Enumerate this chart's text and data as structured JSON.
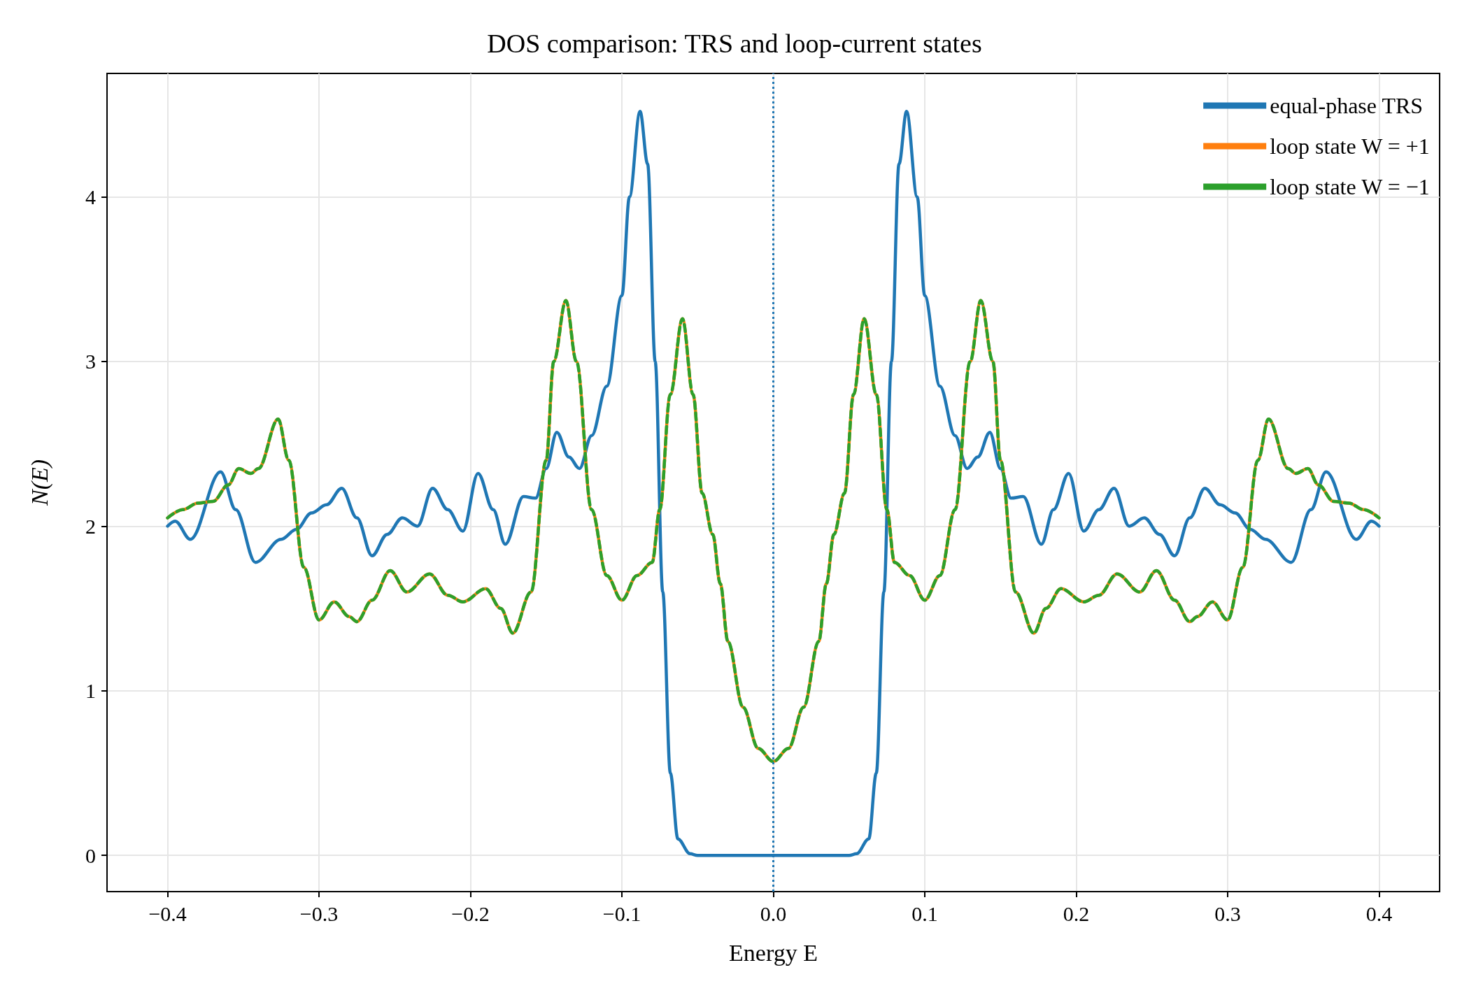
{
  "chart_data": {
    "type": "line",
    "title": "DOS comparison: TRS and loop-current states",
    "xlabel": "Energy E",
    "ylabel": "N(E)",
    "xlim": [
      -0.44,
      0.44
    ],
    "ylim": [
      -0.22,
      4.75
    ],
    "xticks": [
      {
        "value": -0.4,
        "label": "−0.4"
      },
      {
        "value": -0.3,
        "label": "−0.3"
      },
      {
        "value": -0.2,
        "label": "−0.2"
      },
      {
        "value": -0.1,
        "label": "−0.1"
      },
      {
        "value": 0,
        "label": "0.0"
      },
      {
        "value": 0.1,
        "label": "0.1"
      },
      {
        "value": 0.2,
        "label": "0.2"
      },
      {
        "value": 0.3,
        "label": "0.3"
      },
      {
        "value": 0.4,
        "label": "0.4"
      }
    ],
    "yticks": [
      0,
      1,
      2,
      3,
      4
    ],
    "grid": true,
    "legend": "top right",
    "marker": "none",
    "ref_lines": [
      {
        "axis": "x",
        "value": 0,
        "color": "#1f77b4",
        "line_style": "dotted"
      }
    ],
    "series": [
      {
        "name": "equal-phase TRS",
        "color": "#1f77b4",
        "line_style": "solid",
        "x": [
          -0.4,
          -0.395,
          -0.385,
          -0.365,
          -0.355,
          -0.342,
          -0.325,
          -0.315,
          -0.305,
          -0.295,
          -0.285,
          -0.275,
          -0.265,
          -0.255,
          -0.245,
          -0.235,
          -0.225,
          -0.215,
          -0.205,
          -0.195,
          -0.185,
          -0.177,
          -0.165,
          -0.157,
          -0.15,
          -0.143,
          -0.135,
          -0.128,
          -0.12,
          -0.11,
          -0.1,
          -0.095,
          -0.088,
          -0.083,
          -0.078,
          -0.073,
          -0.068,
          -0.063,
          -0.055,
          -0.05,
          0,
          0.05,
          0.055,
          0.063,
          0.068,
          0.073,
          0.078,
          0.083,
          0.088,
          0.095,
          0.1,
          0.11,
          0.12,
          0.128,
          0.135,
          0.143,
          0.15,
          0.157,
          0.165,
          0.177,
          0.185,
          0.195,
          0.205,
          0.215,
          0.225,
          0.235,
          0.245,
          0.255,
          0.265,
          0.275,
          0.285,
          0.295,
          0.305,
          0.315,
          0.325,
          0.342,
          0.355,
          0.365,
          0.385,
          0.395,
          0.4
        ],
        "values": [
          2.0,
          2.03,
          1.92,
          2.33,
          2.1,
          1.78,
          1.92,
          1.98,
          2.08,
          2.13,
          2.23,
          2.05,
          1.82,
          1.95,
          2.05,
          2.0,
          2.23,
          2.1,
          1.97,
          2.32,
          2.1,
          1.89,
          2.18,
          2.17,
          2.35,
          2.57,
          2.42,
          2.35,
          2.55,
          2.85,
          3.4,
          4.0,
          4.52,
          4.2,
          3.0,
          1.6,
          0.5,
          0.1,
          0.01,
          0,
          0,
          0,
          0.01,
          0.1,
          0.5,
          1.6,
          3.0,
          4.2,
          4.52,
          4.0,
          3.4,
          2.85,
          2.55,
          2.35,
          2.42,
          2.57,
          2.35,
          2.17,
          2.18,
          1.89,
          2.1,
          2.32,
          1.97,
          2.1,
          2.23,
          2.0,
          2.05,
          1.95,
          1.82,
          2.05,
          2.23,
          2.13,
          2.08,
          1.98,
          1.92,
          1.78,
          2.1,
          2.33,
          1.92,
          2.03,
          2.0
        ]
      },
      {
        "name": "loop state W = +1",
        "color": "#ff7f0e",
        "line_style": "solid",
        "x": [
          -0.4,
          -0.39,
          -0.38,
          -0.37,
          -0.36,
          -0.353,
          -0.345,
          -0.34,
          -0.327,
          -0.32,
          -0.31,
          -0.3,
          -0.29,
          -0.28,
          -0.275,
          -0.265,
          -0.253,
          -0.242,
          -0.227,
          -0.215,
          -0.205,
          -0.19,
          -0.18,
          -0.172,
          -0.16,
          -0.15,
          -0.145,
          -0.137,
          -0.13,
          -0.12,
          -0.11,
          -0.1,
          -0.09,
          -0.08,
          -0.075,
          -0.068,
          -0.06,
          -0.053,
          -0.047,
          -0.04,
          -0.035,
          -0.03,
          -0.02,
          -0.01,
          0,
          0.01,
          0.02,
          0.03,
          0.035,
          0.04,
          0.047,
          0.053,
          0.06,
          0.068,
          0.075,
          0.08,
          0.09,
          0.1,
          0.11,
          0.12,
          0.13,
          0.137,
          0.145,
          0.15,
          0.16,
          0.172,
          0.18,
          0.19,
          0.205,
          0.215,
          0.227,
          0.242,
          0.253,
          0.265,
          0.275,
          0.28,
          0.29,
          0.3,
          0.31,
          0.32,
          0.327,
          0.34,
          0.345,
          0.353,
          0.36,
          0.37,
          0.38,
          0.39,
          0.4
        ],
        "values": [
          2.05,
          2.1,
          2.14,
          2.15,
          2.25,
          2.35,
          2.32,
          2.35,
          2.65,
          2.4,
          1.75,
          1.43,
          1.54,
          1.45,
          1.42,
          1.55,
          1.73,
          1.6,
          1.71,
          1.58,
          1.54,
          1.62,
          1.5,
          1.35,
          1.6,
          2.4,
          3.0,
          3.37,
          3.0,
          2.1,
          1.7,
          1.55,
          1.7,
          1.78,
          2.1,
          2.8,
          3.26,
          2.8,
          2.2,
          1.95,
          1.65,
          1.3,
          0.9,
          0.65,
          0.57,
          0.65,
          0.9,
          1.3,
          1.65,
          1.95,
          2.2,
          2.8,
          3.26,
          2.8,
          2.1,
          1.78,
          1.7,
          1.55,
          1.7,
          2.1,
          3.0,
          3.37,
          3.0,
          2.4,
          1.6,
          1.35,
          1.5,
          1.62,
          1.54,
          1.58,
          1.71,
          1.6,
          1.73,
          1.55,
          1.42,
          1.45,
          1.54,
          1.43,
          1.75,
          2.4,
          2.65,
          2.35,
          2.32,
          2.35,
          2.25,
          2.15,
          2.14,
          2.1,
          2.05
        ]
      },
      {
        "name": "loop state W = −1",
        "color": "#2ca02c",
        "line_style": "dashed",
        "x": [
          -0.4,
          -0.39,
          -0.38,
          -0.37,
          -0.36,
          -0.353,
          -0.345,
          -0.34,
          -0.327,
          -0.32,
          -0.31,
          -0.3,
          -0.29,
          -0.28,
          -0.275,
          -0.265,
          -0.253,
          -0.242,
          -0.227,
          -0.215,
          -0.205,
          -0.19,
          -0.18,
          -0.172,
          -0.16,
          -0.15,
          -0.145,
          -0.137,
          -0.13,
          -0.12,
          -0.11,
          -0.1,
          -0.09,
          -0.08,
          -0.075,
          -0.068,
          -0.06,
          -0.053,
          -0.047,
          -0.04,
          -0.035,
          -0.03,
          -0.02,
          -0.01,
          0,
          0.01,
          0.02,
          0.03,
          0.035,
          0.04,
          0.047,
          0.053,
          0.06,
          0.068,
          0.075,
          0.08,
          0.09,
          0.1,
          0.11,
          0.12,
          0.13,
          0.137,
          0.145,
          0.15,
          0.16,
          0.172,
          0.18,
          0.19,
          0.205,
          0.215,
          0.227,
          0.242,
          0.253,
          0.265,
          0.275,
          0.28,
          0.29,
          0.3,
          0.31,
          0.32,
          0.327,
          0.34,
          0.345,
          0.353,
          0.36,
          0.37,
          0.38,
          0.39,
          0.4
        ],
        "values": [
          2.05,
          2.1,
          2.14,
          2.15,
          2.25,
          2.35,
          2.32,
          2.35,
          2.65,
          2.4,
          1.75,
          1.43,
          1.54,
          1.45,
          1.42,
          1.55,
          1.73,
          1.6,
          1.71,
          1.58,
          1.54,
          1.62,
          1.5,
          1.35,
          1.6,
          2.4,
          3.0,
          3.37,
          3.0,
          2.1,
          1.7,
          1.55,
          1.7,
          1.78,
          2.1,
          2.8,
          3.26,
          2.8,
          2.2,
          1.95,
          1.65,
          1.3,
          0.9,
          0.65,
          0.57,
          0.65,
          0.9,
          1.3,
          1.65,
          1.95,
          2.2,
          2.8,
          3.26,
          2.8,
          2.1,
          1.78,
          1.7,
          1.55,
          1.7,
          2.1,
          3.0,
          3.37,
          3.0,
          2.4,
          1.6,
          1.35,
          1.5,
          1.62,
          1.54,
          1.58,
          1.71,
          1.6,
          1.73,
          1.55,
          1.42,
          1.45,
          1.54,
          1.43,
          1.75,
          2.4,
          2.65,
          2.35,
          2.32,
          2.35,
          2.25,
          2.15,
          2.14,
          2.1,
          2.05
        ]
      }
    ]
  }
}
